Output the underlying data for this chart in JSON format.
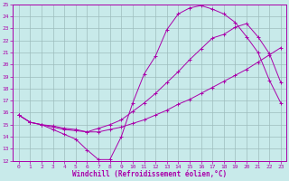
{
  "xlabel": "Windchill (Refroidissement éolien,°C)",
  "bg_color": "#c8eaea",
  "grid_color": "#9dbdbd",
  "line_color": "#aa00aa",
  "xlim": [
    -0.5,
    23.5
  ],
  "ylim": [
    12,
    25
  ],
  "x_ticks": [
    0,
    1,
    2,
    3,
    4,
    5,
    6,
    7,
    8,
    9,
    10,
    11,
    12,
    13,
    14,
    15,
    16,
    17,
    18,
    19,
    20,
    21,
    22,
    23
  ],
  "y_ticks": [
    12,
    13,
    14,
    15,
    16,
    17,
    18,
    19,
    20,
    21,
    22,
    23,
    24,
    25
  ],
  "line1_x": [
    0,
    1,
    2,
    3,
    4,
    5,
    6,
    7,
    8,
    9,
    10,
    11,
    12,
    13,
    14,
    15,
    16,
    17,
    18,
    19,
    20,
    21,
    22,
    23
  ],
  "line1_y": [
    15.8,
    15.2,
    15.0,
    14.6,
    14.2,
    13.8,
    12.9,
    12.1,
    12.1,
    14.0,
    16.8,
    19.2,
    20.7,
    22.9,
    24.2,
    24.7,
    24.9,
    24.6,
    24.2,
    23.5,
    22.3,
    21.0,
    18.7,
    16.8
  ],
  "line2_x": [
    0,
    1,
    2,
    3,
    4,
    5,
    6,
    7,
    8,
    9,
    10,
    11,
    12,
    13,
    14,
    15,
    16,
    17,
    18,
    19,
    20,
    21,
    22,
    23
  ],
  "line2_y": [
    15.8,
    15.2,
    15.0,
    14.9,
    14.7,
    14.6,
    14.4,
    14.4,
    14.6,
    14.8,
    15.1,
    15.4,
    15.8,
    16.2,
    16.7,
    17.1,
    17.6,
    18.1,
    18.6,
    19.1,
    19.6,
    20.2,
    20.8,
    21.4
  ],
  "line3_x": [
    0,
    1,
    2,
    3,
    4,
    5,
    6,
    7,
    8,
    9,
    10,
    11,
    12,
    13,
    14,
    15,
    16,
    17,
    18,
    19,
    20,
    21,
    22,
    23
  ],
  "line3_y": [
    15.8,
    15.2,
    15.0,
    14.8,
    14.6,
    14.5,
    14.4,
    14.7,
    15.0,
    15.4,
    16.1,
    16.8,
    17.6,
    18.5,
    19.4,
    20.4,
    21.3,
    22.2,
    22.5,
    23.1,
    23.4,
    22.3,
    20.9,
    18.5
  ],
  "tick_fontsize": 4.5,
  "xlabel_fontsize": 5.5
}
